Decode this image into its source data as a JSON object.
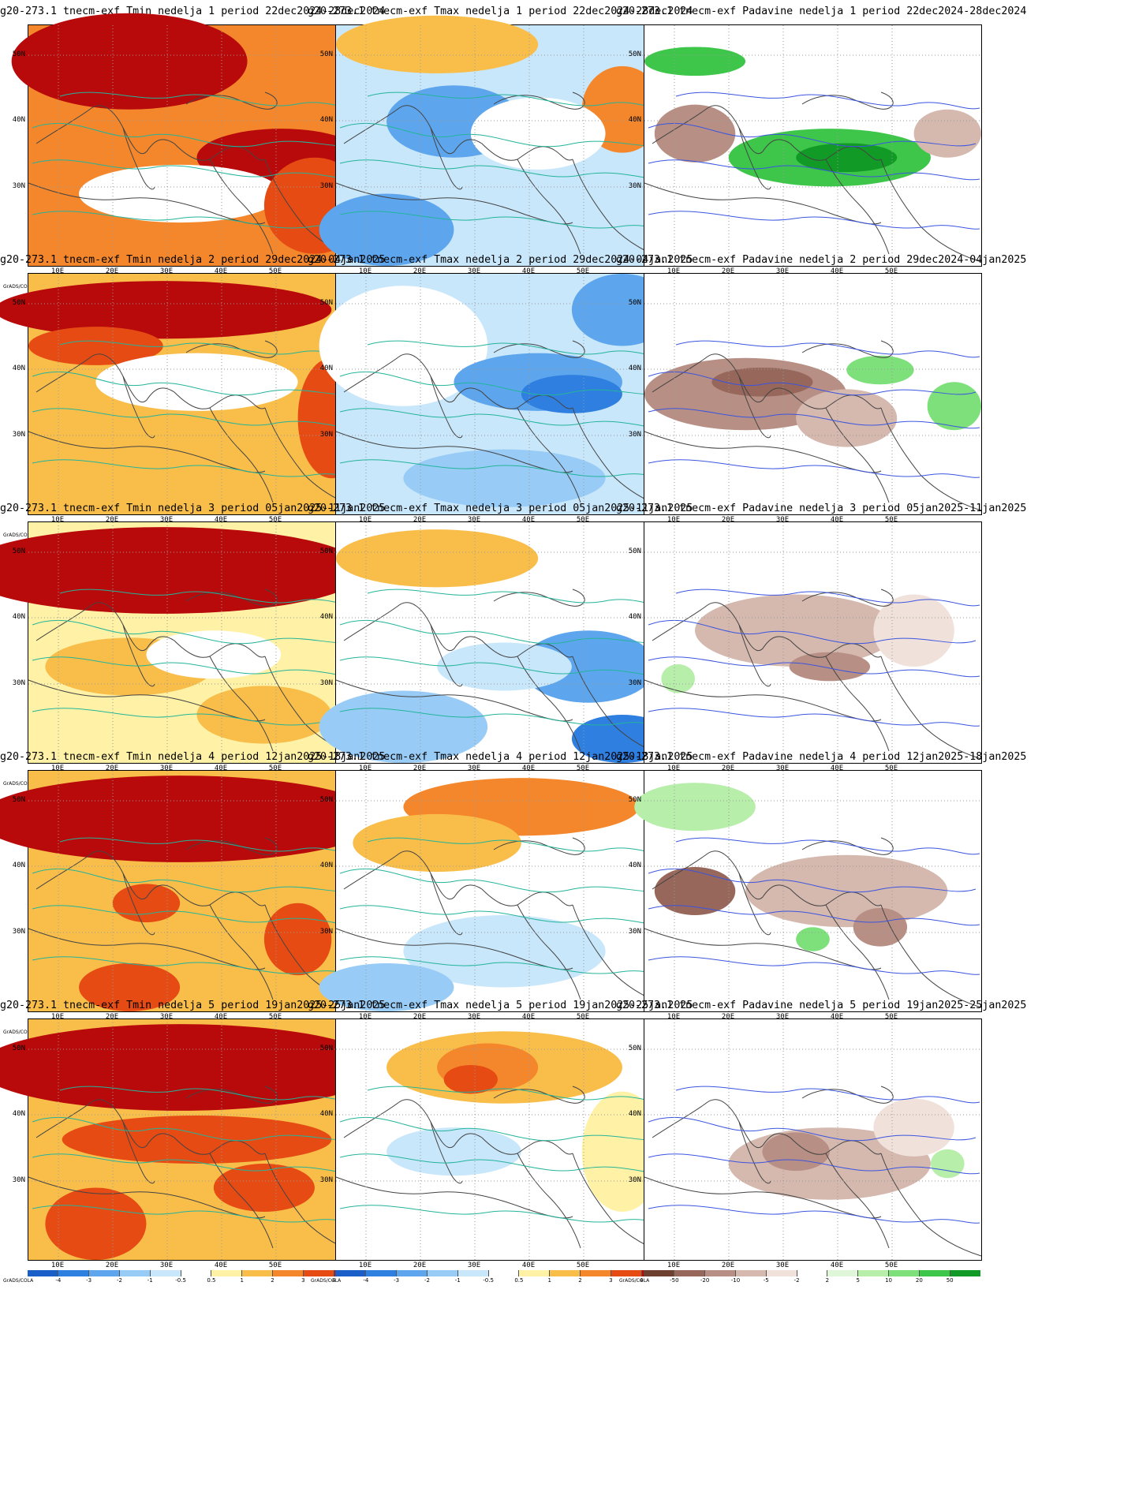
{
  "software_label": "GrADS/COLA",
  "rows": [
    {
      "week": 1,
      "titles": [
        "g20-273.1 tnecm-exf Tmin nedelja 1 period 22dec2024-28dec2024",
        "g20-273.1 tnecm-exf Tmax nedelja 1 period 22dec2024-28dec2024",
        "g20-273.1 tnecm-exf Padavine nedelja 1 period 22dec2024-28dec2024"
      ]
    },
    {
      "week": 2,
      "titles": [
        "g20-273.1 tnecm-exf Tmin nedelja 2 period 29dec2024-04jan2025",
        "g20-273.1 tnecm-exf Tmax nedelja 2 period 29dec2024-04jan2025",
        "g20-273.1 tnecm-exf Padavine nedelja 2 period 29dec2024-04jan2025"
      ]
    },
    {
      "week": 3,
      "titles": [
        "g20-273.1 tnecm-exf Tmin nedelja 3 period 05jan2025-11jan2025",
        "g20-273.1 tnecm-exf Tmax nedelja 3 period 05jan2025-11jan2025",
        "g20-273.1 tnecm-exf Padavine nedelja 3 period 05jan2025-11jan2025"
      ]
    },
    {
      "week": 4,
      "titles": [
        "g20-273.1 tnecm-exf Tmin nedelja 4 period 12jan2025-18jan2025",
        "g20-273.1 tnecm-exf Tmax nedelja 4 period 12jan2025-18jan2025",
        "g20-273.1 tnecm-exf Padavine nedelja 4 period 12jan2025-18jan2025"
      ]
    },
    {
      "week": 5,
      "titles": [
        "g20-273.1 tnecm-exf Tmin nedelja 5 period 19jan2025-25jan2025",
        "g20-273.1 tnecm-exf Tmax nedelja 5 period 19jan2025-25jan2025",
        "g20-273.1 tnecm-exf Padavine nedelja 5 period 19jan2025-25jan2025"
      ]
    }
  ],
  "axes": {
    "lat_labels": [
      "50N",
      "40N",
      "30N"
    ],
    "lon_labels": [
      "10E",
      "20E",
      "30E",
      "40E",
      "50E"
    ]
  },
  "temperature_scale": {
    "ticks": [
      "-4",
      "-3",
      "-2",
      "-1",
      "-0.5",
      "0.5",
      "1",
      "2",
      "3",
      "4"
    ],
    "colors": [
      "#1a5fc8",
      "#2f7fe0",
      "#5da6ee",
      "#98ccf7",
      "#c9e7fb",
      "#ffffff",
      "#fff2a6",
      "#f9be4a",
      "#f4872b",
      "#e64b14",
      "#b80a0a"
    ]
  },
  "precip_scale": {
    "ticks": [
      "-50",
      "-20",
      "-10",
      "-5",
      "-2",
      "2",
      "5",
      "10",
      "20",
      "50"
    ],
    "colors": [
      "#6e4030",
      "#96675a",
      "#b78f84",
      "#d5b8ae",
      "#f0e1da",
      "#ffffff",
      "#e0f6d8",
      "#b6eeaa",
      "#7ee07a",
      "#3ec64a",
      "#129a26"
    ]
  },
  "panel_fields": [
    [
      {
        "var": "Tmin",
        "base": "#f4872b",
        "blobs": [
          [
            "#b80a0a",
            0.3,
            0.15,
            0.35,
            0.2
          ],
          [
            "#b80a0a",
            0.75,
            0.55,
            0.25,
            0.12
          ],
          [
            "#ffffff",
            0.45,
            0.7,
            0.3,
            0.12
          ],
          [
            "#e64b14",
            0.85,
            0.75,
            0.15,
            0.2
          ]
        ]
      },
      {
        "var": "Tmax",
        "base": "#c9e7fb",
        "blobs": [
          [
            "#f9be4a",
            0.3,
            0.08,
            0.3,
            0.12
          ],
          [
            "#5da6ee",
            0.35,
            0.4,
            0.2,
            0.15
          ],
          [
            "#5da6ee",
            0.15,
            0.85,
            0.2,
            0.15
          ],
          [
            "#f4872b",
            0.85,
            0.35,
            0.12,
            0.18
          ],
          [
            "#ffffff",
            0.6,
            0.45,
            0.2,
            0.15
          ]
        ]
      },
      {
        "var": "Padavine",
        "base": "#ffffff",
        "blobs": [
          [
            "#3ec64a",
            0.15,
            0.15,
            0.15,
            0.06
          ],
          [
            "#3ec64a",
            0.55,
            0.55,
            0.3,
            0.12
          ],
          [
            "#129a26",
            0.6,
            0.55,
            0.15,
            0.06
          ],
          [
            "#b78f84",
            0.15,
            0.45,
            0.12,
            0.12
          ],
          [
            "#d5b8ae",
            0.9,
            0.45,
            0.1,
            0.1
          ]
        ]
      }
    ],
    [
      {
        "var": "Tmin",
        "base": "#f9be4a",
        "blobs": [
          [
            "#b80a0a",
            0.4,
            0.15,
            0.5,
            0.12
          ],
          [
            "#e64b14",
            0.2,
            0.3,
            0.2,
            0.08
          ],
          [
            "#ffffff",
            0.5,
            0.45,
            0.3,
            0.12
          ],
          [
            "#e64b14",
            0.9,
            0.6,
            0.1,
            0.25
          ]
        ]
      },
      {
        "var": "Tmax",
        "base": "#c9e7fb",
        "blobs": [
          [
            "#ffffff",
            0.2,
            0.3,
            0.25,
            0.25
          ],
          [
            "#5da6ee",
            0.6,
            0.45,
            0.25,
            0.12
          ],
          [
            "#2f7fe0",
            0.7,
            0.5,
            0.15,
            0.08
          ],
          [
            "#98ccf7",
            0.5,
            0.85,
            0.3,
            0.12
          ],
          [
            "#5da6ee",
            0.85,
            0.15,
            0.15,
            0.15
          ]
        ]
      },
      {
        "var": "Padavine",
        "base": "#ffffff",
        "blobs": [
          [
            "#b78f84",
            0.3,
            0.5,
            0.3,
            0.15
          ],
          [
            "#96675a",
            0.35,
            0.45,
            0.15,
            0.06
          ],
          [
            "#d5b8ae",
            0.6,
            0.6,
            0.15,
            0.12
          ],
          [
            "#7ee07a",
            0.7,
            0.4,
            0.1,
            0.06
          ],
          [
            "#7ee07a",
            0.92,
            0.55,
            0.08,
            0.1
          ]
        ]
      }
    ],
    [
      {
        "var": "Tmin",
        "base": "#fff2a6",
        "blobs": [
          [
            "#b80a0a",
            0.4,
            0.2,
            0.6,
            0.18
          ],
          [
            "#f9be4a",
            0.3,
            0.6,
            0.25,
            0.12
          ],
          [
            "#f9be4a",
            0.7,
            0.8,
            0.2,
            0.12
          ],
          [
            "#ffffff",
            0.55,
            0.55,
            0.2,
            0.1
          ]
        ]
      },
      {
        "var": "Tmax",
        "base": "#ffffff",
        "blobs": [
          [
            "#f9be4a",
            0.3,
            0.15,
            0.3,
            0.12
          ],
          [
            "#5da6ee",
            0.75,
            0.6,
            0.2,
            0.15
          ],
          [
            "#98ccf7",
            0.2,
            0.85,
            0.25,
            0.15
          ],
          [
            "#2f7fe0",
            0.85,
            0.9,
            0.15,
            0.1
          ],
          [
            "#c9e7fb",
            0.5,
            0.6,
            0.2,
            0.1
          ]
        ]
      },
      {
        "var": "Padavine",
        "base": "#ffffff",
        "blobs": [
          [
            "#d5b8ae",
            0.45,
            0.45,
            0.3,
            0.15
          ],
          [
            "#b78f84",
            0.55,
            0.6,
            0.12,
            0.06
          ],
          [
            "#f0e1da",
            0.8,
            0.45,
            0.12,
            0.15
          ],
          [
            "#b6eeaa",
            0.1,
            0.65,
            0.05,
            0.06
          ]
        ]
      }
    ],
    [
      {
        "var": "Tmin",
        "base": "#f9be4a",
        "blobs": [
          [
            "#b80a0a",
            0.45,
            0.2,
            0.6,
            0.18
          ],
          [
            "#e64b14",
            0.35,
            0.55,
            0.1,
            0.08
          ],
          [
            "#e64b14",
            0.8,
            0.7,
            0.1,
            0.15
          ],
          [
            "#e64b14",
            0.3,
            0.9,
            0.15,
            0.1
          ]
        ]
      },
      {
        "var": "Tmax",
        "base": "#ffffff",
        "blobs": [
          [
            "#f4872b",
            0.55,
            0.15,
            0.35,
            0.12
          ],
          [
            "#f9be4a",
            0.3,
            0.3,
            0.25,
            0.12
          ],
          [
            "#c9e7fb",
            0.5,
            0.75,
            0.3,
            0.15
          ],
          [
            "#98ccf7",
            0.15,
            0.9,
            0.2,
            0.1
          ]
        ]
      },
      {
        "var": "Padavine",
        "base": "#ffffff",
        "blobs": [
          [
            "#b6eeaa",
            0.15,
            0.15,
            0.18,
            0.1
          ],
          [
            "#96675a",
            0.15,
            0.5,
            0.12,
            0.1
          ],
          [
            "#d5b8ae",
            0.6,
            0.5,
            0.3,
            0.15
          ],
          [
            "#7ee07a",
            0.5,
            0.7,
            0.05,
            0.05
          ],
          [
            "#b78f84",
            0.7,
            0.65,
            0.08,
            0.08
          ]
        ]
      }
    ],
    [
      {
        "var": "Tmin",
        "base": "#f9be4a",
        "blobs": [
          [
            "#b80a0a",
            0.45,
            0.2,
            0.6,
            0.18
          ],
          [
            "#e64b14",
            0.5,
            0.5,
            0.4,
            0.1
          ],
          [
            "#e64b14",
            0.2,
            0.85,
            0.15,
            0.15
          ],
          [
            "#e64b14",
            0.7,
            0.7,
            0.15,
            0.1
          ]
        ]
      },
      {
        "var": "Tmax",
        "base": "#ffffff",
        "blobs": [
          [
            "#f9be4a",
            0.5,
            0.2,
            0.35,
            0.15
          ],
          [
            "#f4872b",
            0.45,
            0.2,
            0.15,
            0.1
          ],
          [
            "#e64b14",
            0.4,
            0.25,
            0.08,
            0.06
          ],
          [
            "#fff2a6",
            0.85,
            0.55,
            0.12,
            0.25
          ],
          [
            "#c9e7fb",
            0.35,
            0.55,
            0.2,
            0.1
          ]
        ]
      },
      {
        "var": "Padavine",
        "base": "#ffffff",
        "blobs": [
          [
            "#d5b8ae",
            0.55,
            0.6,
            0.3,
            0.15
          ],
          [
            "#b78f84",
            0.45,
            0.55,
            0.1,
            0.08
          ],
          [
            "#b6eeaa",
            0.9,
            0.6,
            0.05,
            0.06
          ],
          [
            "#f0e1da",
            0.8,
            0.45,
            0.12,
            0.12
          ]
        ]
      }
    ]
  ]
}
